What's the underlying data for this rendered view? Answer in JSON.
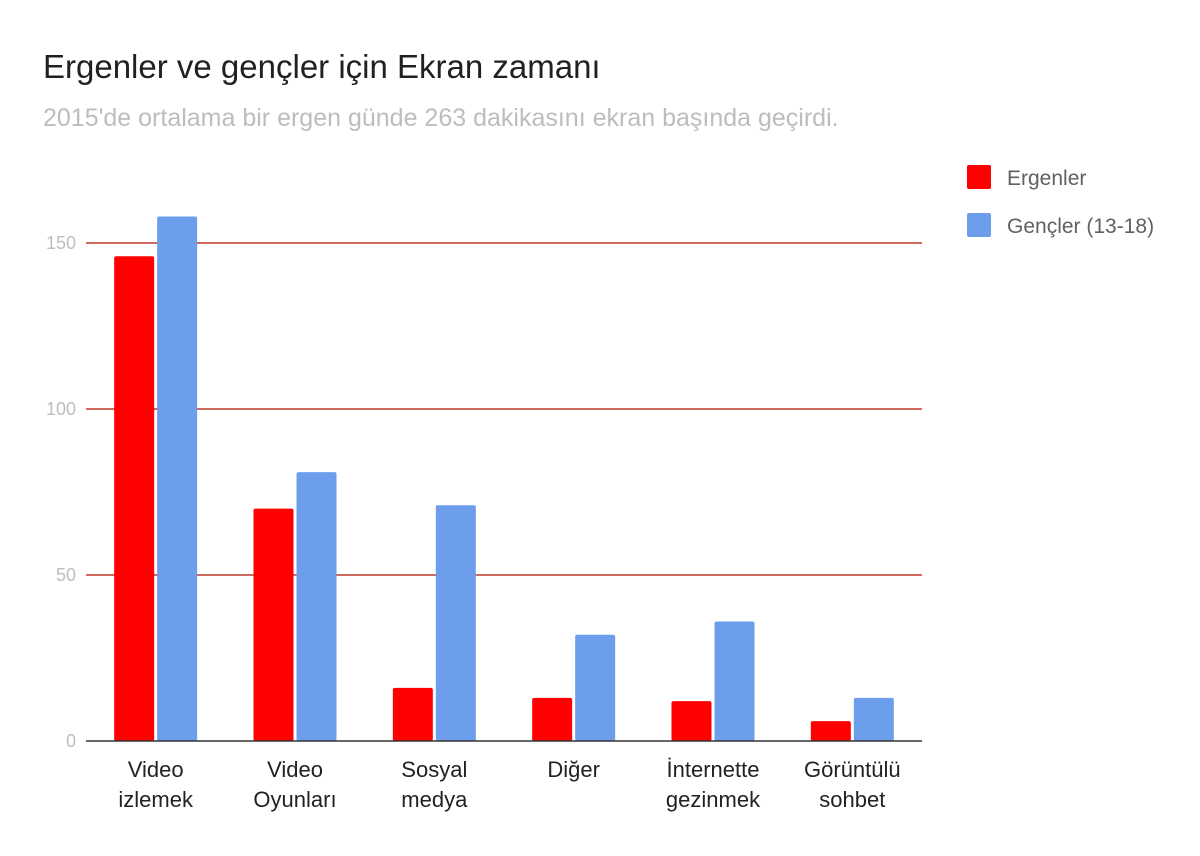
{
  "chart_data": {
    "type": "bar",
    "title": "Ergenler ve gençler için Ekran zamanı",
    "subtitle": "2015'de ortalama bir ergen günde 263 dakikasını ekran başında geçirdi.",
    "categories": [
      [
        "Video",
        "izlemek"
      ],
      [
        "Video",
        "Oyunları"
      ],
      [
        "Sosyal",
        "medya"
      ],
      [
        "Diğer"
      ],
      [
        "İnternette",
        "gezinmek"
      ],
      [
        "Görüntülü",
        "sohbet"
      ]
    ],
    "series": [
      {
        "name": "Ergenler",
        "color": "#ff0000",
        "values": [
          146,
          70,
          16,
          13,
          12,
          6
        ]
      },
      {
        "name": "Gençler (13-18)",
        "color": "#6d9eeb",
        "values": [
          158,
          81,
          71,
          32,
          36,
          13
        ]
      }
    ],
    "ylim": [
      0,
      150
    ],
    "yticks": [
      "0",
      "50",
      "100",
      "150"
    ],
    "gridlines": true,
    "gridline_color": "#c0392b",
    "legend_position": "right"
  }
}
